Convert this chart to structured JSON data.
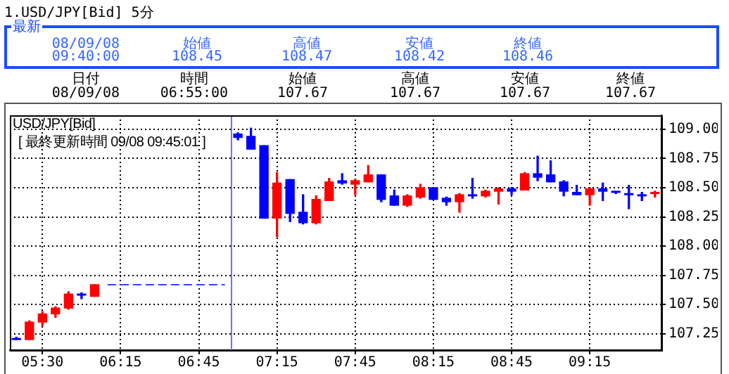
{
  "chart_data": {
    "type": "candlestick",
    "title": "1.USD/JPY[Bid]  5分",
    "annotations": [
      "最新",
      "08/09/08",
      "09:40:00",
      "始値",
      "108.45",
      "高値",
      "108.47",
      "安値",
      "108.42",
      "終値",
      "108.46",
      "日付",
      "08/09/08",
      "時間",
      "06:55:00",
      "始値",
      "107.67",
      "高値",
      "107.67",
      "安値",
      "107.67",
      "終値",
      "107.67",
      "USD/JPY[Bid]",
      "[ 最終更新時間 09/08 09:45:01 ]"
    ],
    "categories": [
      null,
      null,
      "05:30",
      null,
      null,
      null,
      null,
      null,
      "06:15",
      null,
      null,
      null,
      null,
      null,
      "06:45",
      null,
      null,
      null,
      null,
      null,
      "07:15",
      null,
      null,
      null,
      null,
      null,
      "07:45",
      null,
      null,
      null,
      null,
      null,
      "08:15",
      null,
      null,
      null,
      null,
      null,
      "08:45",
      null,
      null,
      null,
      null,
      null,
      "09:15",
      null,
      null,
      null,
      null,
      null
    ],
    "ohlc": [
      [
        107.21,
        107.22,
        107.2,
        107.2
      ],
      [
        107.2,
        107.36,
        107.2,
        107.35
      ],
      [
        107.35,
        107.44,
        107.32,
        107.42
      ],
      [
        107.42,
        107.48,
        107.39,
        107.47
      ],
      [
        107.47,
        107.61,
        107.46,
        107.59
      ],
      [
        107.59,
        107.6,
        107.55,
        107.58
      ],
      [
        107.57,
        107.67,
        107.57,
        107.67
      ],
      null,
      null,
      null,
      null,
      null,
      null,
      null,
      null,
      null,
      null,
      [
        108.96,
        108.97,
        108.91,
        108.93
      ],
      [
        108.94,
        109.01,
        108.83,
        108.83
      ],
      [
        108.86,
        108.86,
        108.24,
        108.24
      ],
      [
        108.24,
        108.63,
        108.08,
        108.54
      ],
      [
        108.57,
        108.57,
        108.21,
        108.28
      ],
      [
        108.29,
        108.44,
        108.19,
        108.2
      ],
      [
        108.2,
        108.43,
        108.19,
        108.4
      ],
      [
        108.39,
        108.58,
        108.39,
        108.55
      ],
      [
        108.56,
        108.62,
        108.53,
        108.54
      ],
      [
        108.53,
        108.57,
        108.44,
        108.56
      ],
      [
        108.55,
        108.69,
        108.55,
        108.61
      ],
      [
        108.61,
        108.61,
        108.38,
        108.4
      ],
      [
        108.43,
        108.48,
        108.35,
        108.35
      ],
      [
        108.35,
        108.44,
        108.34,
        108.43
      ],
      [
        108.42,
        108.53,
        108.41,
        108.5
      ],
      [
        108.5,
        108.5,
        108.4,
        108.4
      ],
      [
        108.41,
        108.42,
        108.35,
        108.38
      ],
      [
        108.38,
        108.45,
        108.29,
        108.44
      ],
      [
        108.44,
        108.58,
        108.41,
        108.43
      ],
      [
        108.43,
        108.48,
        108.42,
        108.47
      ],
      [
        108.47,
        108.5,
        108.36,
        108.49
      ],
      [
        108.49,
        108.5,
        108.44,
        108.47
      ],
      [
        108.48,
        108.63,
        108.48,
        108.62
      ],
      [
        108.62,
        108.77,
        108.56,
        108.59
      ],
      [
        108.61,
        108.73,
        108.55,
        108.55
      ],
      [
        108.55,
        108.56,
        108.43,
        108.47
      ],
      [
        108.46,
        108.52,
        108.44,
        108.44
      ],
      [
        108.44,
        108.5,
        108.35,
        108.49
      ],
      [
        108.49,
        108.54,
        108.39,
        108.47
      ],
      [
        108.47,
        108.47,
        108.45,
        108.46
      ],
      [
        108.45,
        108.52,
        108.32,
        108.44
      ],
      [
        108.44,
        108.46,
        108.39,
        108.43
      ],
      [
        108.45,
        108.47,
        108.42,
        108.46
      ]
    ],
    "colors": [
      "#0000ff",
      "#ff0000",
      "#ff0000",
      "#ff0000",
      "#ff0000",
      "#0000ff",
      "#ff0000",
      null,
      null,
      null,
      null,
      null,
      null,
      null,
      null,
      null,
      null,
      "#0000ff",
      "#0000ff",
      "#0000ff",
      "#ff0000",
      "#0000ff",
      "#0000ff",
      "#ff0000",
      "#ff0000",
      "#0000ff",
      "#ff0000",
      "#ff0000",
      "#0000ff",
      "#0000ff",
      "#ff0000",
      "#ff0000",
      "#0000ff",
      "#0000ff",
      "#ff0000",
      "#0000ff",
      "#ff0000",
      "#ff0000",
      "#0000ff",
      "#ff0000",
      "#0000ff",
      "#0000ff",
      "#0000ff",
      "#0000ff",
      "#ff0000",
      "#0000ff",
      "#0000ff",
      "#0000ff",
      "#0000ff",
      "#ff0000"
    ],
    "series": [
      {
        "type": "line",
        "color": "#3344ff",
        "line_style": "dashed",
        "values": [
          null,
          null,
          null,
          null,
          null,
          null,
          null,
          107.67,
          107.67,
          107.67,
          107.67,
          107.67,
          107.67,
          107.67,
          107.67,
          107.67,
          107.67,
          null,
          null,
          null,
          null,
          null,
          null,
          null,
          null,
          null,
          null,
          null,
          null,
          null,
          null,
          null,
          null,
          null,
          null,
          null,
          null,
          null,
          null,
          null,
          null,
          null,
          null,
          null,
          null,
          null,
          null,
          null,
          null,
          null
        ]
      }
    ],
    "ylim": [
      107.11,
      109.12
    ],
    "yticks": [
      {
        "value": 107.25,
        "label": "107.25"
      },
      {
        "value": 107.5,
        "label": "107.50"
      },
      {
        "value": 107.75,
        "label": "107.75"
      },
      {
        "value": 108,
        "label": "108.00"
      },
      {
        "value": 108.25,
        "label": "108.25"
      },
      {
        "value": 108.5,
        "label": "108.50"
      },
      {
        "value": 108.75,
        "label": "108.75"
      },
      {
        "value": 109,
        "label": "109.00"
      }
    ],
    "grid": true
  }
}
